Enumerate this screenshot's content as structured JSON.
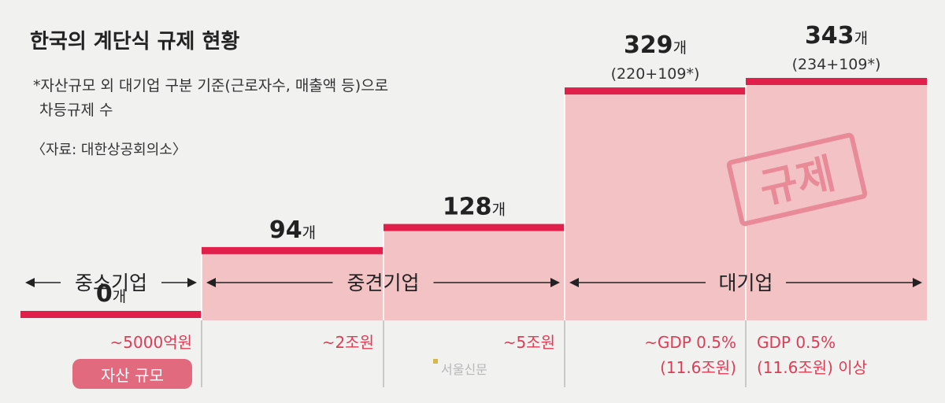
{
  "title": "한국의 계단식 규제 현황",
  "note_line1": "*자산규모 외 대기업 구분 기준(근로자수, 매출액 등)으로",
  "note_line2": "차등규제 수",
  "source": "〈자료: 대한상공회의소〉",
  "legend_badge": "자산 규모",
  "watermark": "서울신문",
  "stamp_text": "규제",
  "colors": {
    "bar_fill": "#f2c2c4",
    "bar_top": "#e0204a",
    "label_red": "#e03b55",
    "text": "#222222"
  },
  "chart_data": {
    "type": "bar",
    "unit": "개",
    "categories": [
      "~5000억원",
      "~2조원",
      "~5조원",
      "~GDP 0.5%\n(11.6조원)",
      "GDP 0.5%\n(11.6조원) 이상"
    ],
    "values": [
      0,
      94,
      128,
      329,
      343
    ],
    "value_breakdowns": [
      "",
      "",
      "",
      "(220+109*)",
      "(234+109*)"
    ],
    "ylim": [
      0,
      343
    ],
    "groups": [
      {
        "label": "중소기업",
        "from": 0,
        "to": 0
      },
      {
        "label": "중견기업",
        "from": 1,
        "to": 2
      },
      {
        "label": "대기업",
        "from": 3,
        "to": 4
      }
    ]
  }
}
